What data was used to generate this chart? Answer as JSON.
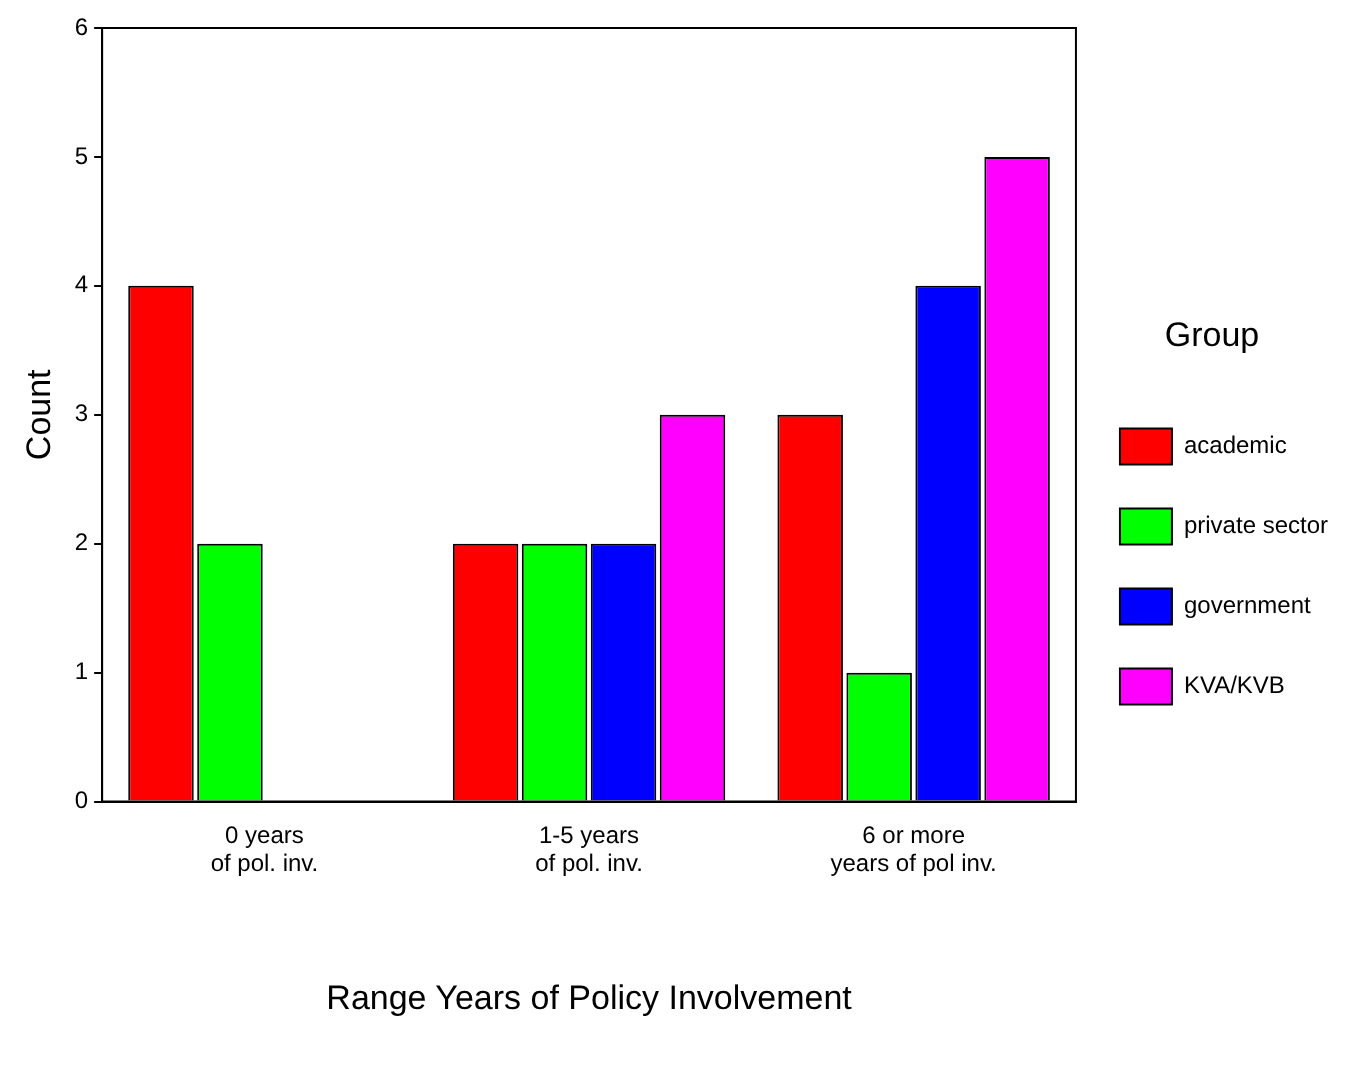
{
  "chart_data": {
    "type": "bar",
    "xlabel": "Range Years of Policy Involvement",
    "ylabel": "Count",
    "legend_title": "Group",
    "categories": [
      "0 years\nof pol. inv.",
      "1-5 years\nof pol. inv.",
      "6 or more\nyears of pol inv."
    ],
    "series": [
      {
        "name": "academic",
        "color": "#ff0000",
        "values": [
          4,
          2,
          3
        ]
      },
      {
        "name": "private sector",
        "color": "#00ff00",
        "values": [
          2,
          2,
          1
        ]
      },
      {
        "name": "government",
        "color": "#0000ff",
        "values": [
          0,
          2,
          4
        ]
      },
      {
        "name": "KVA/KVB",
        "color": "#ff00ff",
        "values": [
          0,
          3,
          5
        ]
      }
    ],
    "ylim": [
      0,
      6
    ],
    "yticks": [
      0,
      1,
      2,
      3,
      4,
      5,
      6
    ],
    "grid": false,
    "legend": "right"
  }
}
